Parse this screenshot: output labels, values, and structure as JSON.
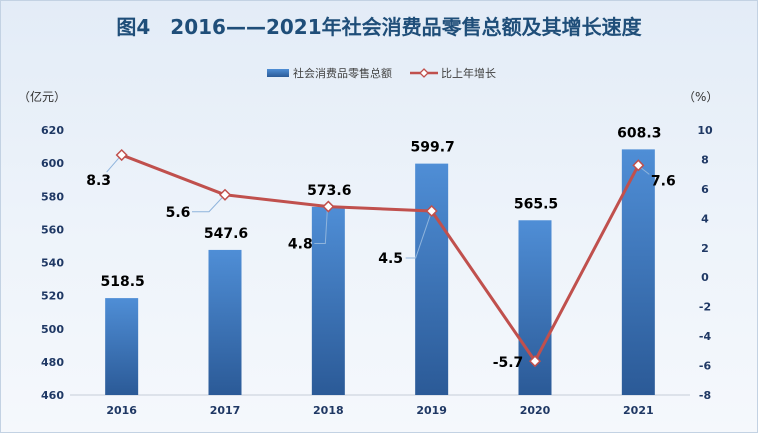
{
  "chart_data": {
    "type": "bar",
    "title": "图4　2016——2021年社会消费品零售总额及其增长速度",
    "categories": [
      "2016",
      "2017",
      "2018",
      "2019",
      "2020",
      "2021"
    ],
    "series": [
      {
        "name": "社会消费品零售总额",
        "values": [
          518.5,
          547.6,
          573.6,
          599.7,
          565.5,
          608.3
        ]
      },
      {
        "name": "比上年增长",
        "type": "line",
        "values": [
          8.3,
          5.6,
          4.8,
          4.5,
          -5.7,
          7.6
        ]
      }
    ],
    "ylabel_left": "（亿元）",
    "ylabel_right": "（%）",
    "ylim_left": [
      460,
      620
    ],
    "ylim_right": [
      -8,
      10
    ],
    "yticks_left": [
      620,
      600,
      580,
      560,
      540,
      520,
      500,
      480,
      460
    ],
    "yticks_right": [
      10,
      8,
      6,
      4,
      2,
      0,
      -2,
      -4,
      -6,
      -8
    ],
    "grid": false
  },
  "colors": {
    "bar_top": "#4f8ed6",
    "bar_bottom": "#2b5a97",
    "line": "#c0504d",
    "title": "#1f4e79",
    "axis_text": "#1f3864",
    "leader": "#8fb4dc"
  }
}
